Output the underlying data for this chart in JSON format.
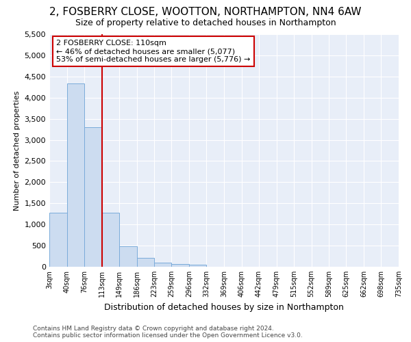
{
  "title1": "2, FOSBERRY CLOSE, WOOTTON, NORTHAMPTON, NN4 6AW",
  "title2": "Size of property relative to detached houses in Northampton",
  "xlabel": "Distribution of detached houses by size in Northampton",
  "ylabel": "Number of detached properties",
  "footnote": "Contains HM Land Registry data © Crown copyright and database right 2024.\nContains public sector information licensed under the Open Government Licence v3.0.",
  "bar_edges": [
    3,
    40,
    76,
    113,
    149,
    186,
    223,
    259,
    296,
    332,
    369,
    406,
    442,
    479,
    515,
    552,
    589,
    625,
    662,
    698,
    735
  ],
  "bar_heights": [
    1270,
    4330,
    3295,
    1285,
    490,
    215,
    90,
    70,
    55,
    0,
    0,
    0,
    0,
    0,
    0,
    0,
    0,
    0,
    0,
    0
  ],
  "bar_color": "#ccdcf0",
  "bar_edge_color": "#7aabda",
  "vline_x": 113,
  "vline_color": "#cc0000",
  "annotation_text": "2 FOSBERRY CLOSE: 110sqm\n← 46% of detached houses are smaller (5,077)\n53% of semi-detached houses are larger (5,776) →",
  "annotation_box_color": "#ffffff",
  "annotation_box_edge_color": "#cc0000",
  "ylim": [
    0,
    5500
  ],
  "yticks": [
    0,
    500,
    1000,
    1500,
    2000,
    2500,
    3000,
    3500,
    4000,
    4500,
    5000,
    5500
  ],
  "bg_color": "#e8eef8",
  "fig_bg_color": "#ffffff",
  "grid_color": "#ffffff",
  "title1_fontsize": 11,
  "title2_fontsize": 9,
  "ylabel_fontsize": 8,
  "xlabel_fontsize": 9,
  "tick_fontsize": 7,
  "footnote_fontsize": 6.5
}
